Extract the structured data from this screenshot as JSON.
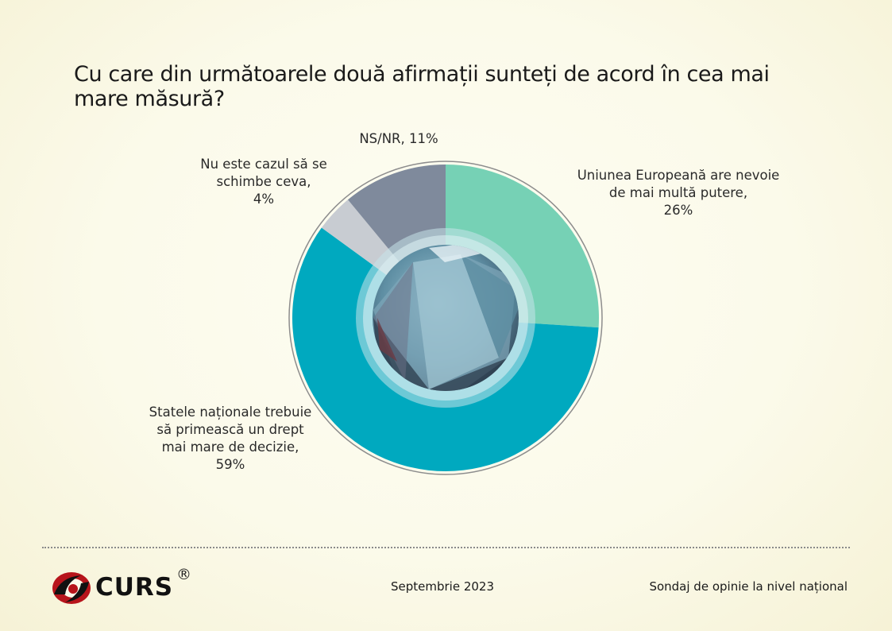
{
  "chart_data": {
    "type": "pie",
    "title": "Cu care din următoarele două afirmații sunteți de acord în cea mai mare măsură?",
    "slices": [
      {
        "label": "Uniunea Europeană are nevoie de mai multă putere,",
        "value": 26,
        "value_label": "26%",
        "color": "#76d1b5"
      },
      {
        "label": "Statele naționale trebuie să primească un drept mai mare de decizie,",
        "value": 59,
        "value_label": "59%",
        "color": "#00a9bf"
      },
      {
        "label": "Nu este cazul să se schimbe ceva,",
        "value": 4,
        "value_label": "4%",
        "color": "#c8ccd2"
      },
      {
        "label": "NS/NR,",
        "value": 11,
        "value_label": "11%",
        "color": "#7f8a9c"
      }
    ]
  },
  "labels": {
    "eu": {
      "text": "Uniunea Europeană are nevoie de mai multă putere,",
      "pct": "26%"
    },
    "nat": {
      "text": "Statele naționale trebuie să primească un drept mai mare de decizie,",
      "pct": "59%"
    },
    "nu": {
      "text": "Nu este cazul să se schimbe ceva,",
      "pct": "4%"
    },
    "ns": {
      "text": "NS/NR,",
      "pct": "11%"
    }
  },
  "footer": {
    "logo_text": "CURS",
    "logo_mark": "®",
    "date": "Septembrie 2023",
    "source": "Sondaj de opinie la nivel național"
  }
}
